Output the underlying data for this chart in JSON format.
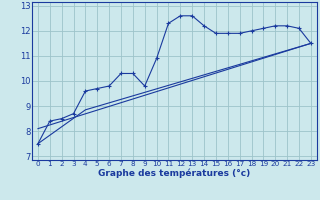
{
  "xlabel": "Graphe des températures (°c)",
  "bg_color": "#cce8ec",
  "line_color": "#1a3a9e",
  "grid_color": "#9dc4ca",
  "x_ticks": [
    0,
    1,
    2,
    3,
    4,
    5,
    6,
    7,
    8,
    9,
    10,
    11,
    12,
    13,
    14,
    15,
    16,
    17,
    18,
    19,
    20,
    21,
    22,
    23
  ],
  "y_ticks": [
    7,
    8,
    9,
    10,
    11,
    12,
    13
  ],
  "ylim": [
    6.85,
    13.15
  ],
  "xlim": [
    -0.5,
    23.5
  ],
  "series1_x": [
    0,
    1,
    2,
    3,
    4,
    5,
    6,
    7,
    8,
    9,
    10,
    11,
    12,
    13,
    14,
    15,
    16,
    17,
    18,
    19,
    20,
    21,
    22,
    23
  ],
  "series1_y": [
    7.5,
    8.4,
    8.5,
    8.7,
    9.6,
    9.7,
    9.8,
    10.3,
    10.3,
    9.8,
    10.9,
    12.3,
    12.6,
    12.6,
    12.2,
    11.9,
    11.9,
    11.9,
    12.0,
    12.1,
    12.2,
    12.2,
    12.1,
    11.5
  ],
  "series2_x": [
    0,
    4,
    23
  ],
  "series2_y": [
    7.5,
    8.85,
    11.5
  ],
  "series3_x": [
    0,
    23
  ],
  "series3_y": [
    8.1,
    11.5
  ],
  "xticklabel_fontsize": 5.2,
  "yticklabel_fontsize": 6.0,
  "xlabel_fontsize": 6.5
}
